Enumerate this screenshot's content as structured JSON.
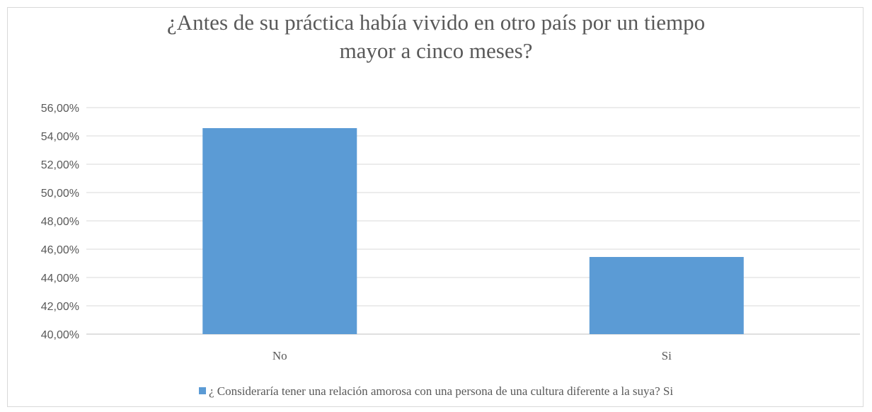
{
  "chart_data": {
    "type": "bar",
    "title_lines": [
      "¿Antes de su práctica había vivido en otro país por un tiempo",
      "mayor a cinco meses?"
    ],
    "categories": [
      "No",
      "Si"
    ],
    "series": [
      {
        "name": "¿ Consideraría tener una relación amorosa con una persona de una cultura diferente a la suya? Si",
        "values": [
          54.55,
          45.45
        ],
        "color": "#5b9bd5"
      }
    ],
    "ylim": [
      40,
      56
    ],
    "yticks": [
      "40,00%",
      "42,00%",
      "44,00%",
      "46,00%",
      "48,00%",
      "50,00%",
      "52,00%",
      "54,00%",
      "56,00%"
    ],
    "grid": true,
    "legend_position": "bottom"
  }
}
